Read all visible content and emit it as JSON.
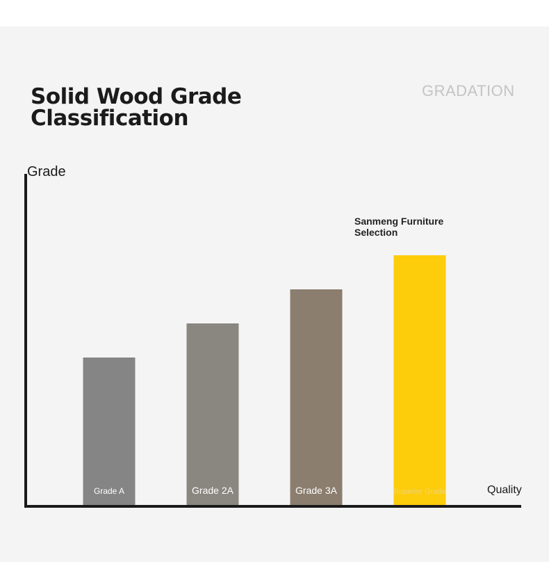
{
  "header": {
    "title_line1": "Solid Wood Grade",
    "title_line2": "Classification",
    "brand_watermark": "GRADATION"
  },
  "chart_data": {
    "type": "bar",
    "categories": [
      "Grade A",
      "Grade 2A",
      "Grade 3A",
      "Superior Grade"
    ],
    "values": [
      1,
      2,
      3,
      4
    ],
    "ylabel": "Grade",
    "xlabel": "Quality",
    "grid": false,
    "annotation": {
      "text_line1": "Sanmeng Furniture",
      "text_line2": "Selection",
      "category": "Superior Grade"
    },
    "colors": [
      "#858585",
      "#8a8680",
      "#8b7e6f",
      "#fdcc0b"
    ],
    "axis_color": "#1a1a1a"
  }
}
